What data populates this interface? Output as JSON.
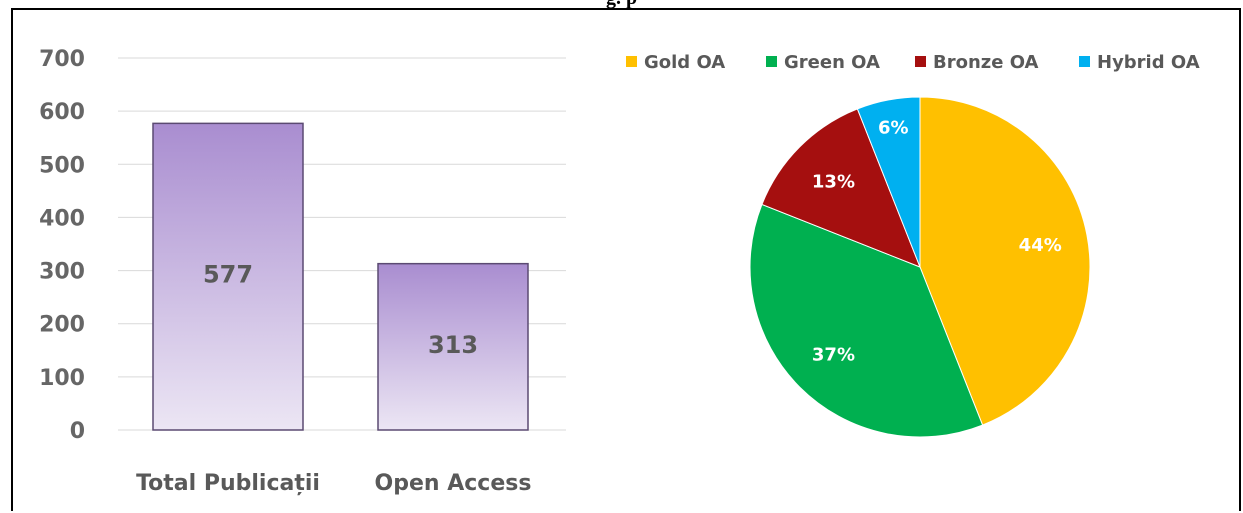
{
  "figure": {
    "title_fragment": "g. p"
  },
  "chart_data": [
    {
      "type": "bar",
      "categories": [
        "Total Publicații",
        "Open Access"
      ],
      "values": [
        577,
        313
      ],
      "data_labels": [
        "577",
        "313"
      ],
      "yticks": [
        "0",
        "100",
        "200",
        "300",
        "400",
        "500",
        "600",
        "700"
      ],
      "ylim": [
        0,
        700
      ],
      "grid": true,
      "colors": {
        "bar_top": "#a98dd0",
        "bar_bottom": "#ece6f4",
        "bar_border": "#5b4a72",
        "grid": "#d9d9d9"
      }
    },
    {
      "type": "pie",
      "labels": [
        "Gold OA",
        "Green OA",
        "Bronze OA",
        "Hybrid OA"
      ],
      "values": [
        44,
        37,
        13,
        6
      ],
      "value_labels": [
        "44%",
        "37%",
        "13%",
        "6%"
      ],
      "colors": [
        "#ffc000",
        "#00b050",
        "#a50f0f",
        "#00b0f0"
      ],
      "legend_position": "top"
    }
  ]
}
